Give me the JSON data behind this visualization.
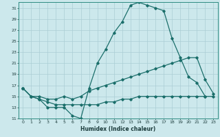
{
  "xlabel": "Humidex (Indice chaleur)",
  "bg_color": "#cce8ec",
  "grid_color": "#aacdd4",
  "line_color": "#1a6e6a",
  "xlim": [
    -0.5,
    23.5
  ],
  "ylim": [
    11,
    32
  ],
  "xticks": [
    0,
    1,
    2,
    3,
    4,
    5,
    6,
    7,
    8,
    9,
    10,
    11,
    12,
    13,
    14,
    15,
    16,
    17,
    18,
    19,
    20,
    21,
    22,
    23
  ],
  "yticks": [
    11,
    13,
    15,
    17,
    19,
    21,
    23,
    25,
    27,
    29,
    31
  ],
  "line1_x": [
    0,
    1,
    2,
    3,
    4,
    5,
    6,
    7,
    8,
    9,
    10,
    11,
    12,
    13,
    14,
    15,
    16,
    17,
    18,
    19,
    20,
    21,
    22
  ],
  "line1_y": [
    16.5,
    15.0,
    14.5,
    13.0,
    13.0,
    13.0,
    11.5,
    11.0,
    16.5,
    21.0,
    23.5,
    26.5,
    28.5,
    31.5,
    32.0,
    31.5,
    31.0,
    30.5,
    25.5,
    22.0,
    18.5,
    17.5,
    15.0
  ],
  "line2_x": [
    0,
    1,
    2,
    3,
    4,
    5,
    6,
    7,
    8,
    9,
    10,
    11,
    12,
    13,
    14,
    15,
    16,
    17,
    18,
    19,
    20,
    21,
    22,
    23
  ],
  "line2_y": [
    16.5,
    15.0,
    15.0,
    14.5,
    14.5,
    15.0,
    14.5,
    15.0,
    16.0,
    16.5,
    17.0,
    17.5,
    18.0,
    18.5,
    19.0,
    19.5,
    20.0,
    20.5,
    21.0,
    21.5,
    22.0,
    22.0,
    18.0,
    15.5
  ],
  "line3_x": [
    0,
    1,
    2,
    3,
    4,
    5,
    6,
    7,
    8,
    9,
    10,
    11,
    12,
    13,
    14,
    15,
    16,
    17,
    18,
    19,
    20,
    21,
    22,
    23
  ],
  "line3_y": [
    16.5,
    15.0,
    14.5,
    14.0,
    13.5,
    13.5,
    13.5,
    13.5,
    13.5,
    13.5,
    14.0,
    14.0,
    14.5,
    14.5,
    15.0,
    15.0,
    15.0,
    15.0,
    15.0,
    15.0,
    15.0,
    15.0,
    15.0,
    15.0
  ]
}
